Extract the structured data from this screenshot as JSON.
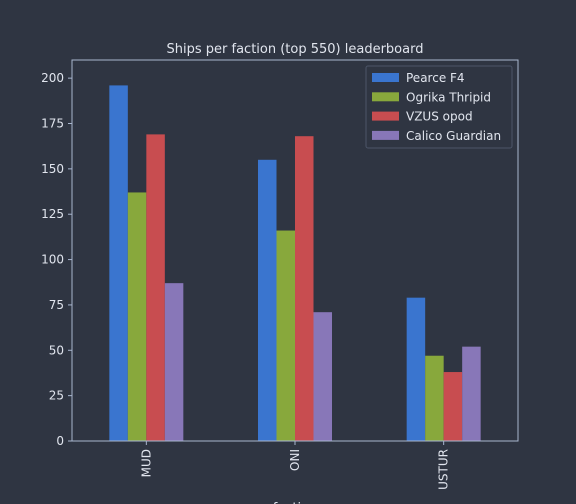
{
  "chart_data": {
    "type": "bar",
    "title": "Ships per faction (top 550) leaderboard",
    "xlabel": "faction",
    "ylabel": "",
    "categories": [
      "MUD",
      "ONI",
      "USTUR"
    ],
    "series": [
      {
        "name": "Pearce F4",
        "color": "#3a75cf",
        "values": [
          196,
          155,
          79
        ]
      },
      {
        "name": "Ogrika Thripid",
        "color": "#88a83c",
        "values": [
          137,
          116,
          47
        ]
      },
      {
        "name": "VZUS opod",
        "color": "#c84d50",
        "values": [
          169,
          168,
          38
        ]
      },
      {
        "name": "Calico Guardian",
        "color": "#8877b8",
        "values": [
          87,
          71,
          52
        ]
      }
    ],
    "ylim": [
      0,
      210
    ],
    "yticks": [
      0,
      25,
      50,
      75,
      100,
      125,
      150,
      175,
      200
    ],
    "grid": false,
    "legend": "top-right",
    "colors": {
      "background": "#2f3542",
      "axes": "#a9b6cf",
      "text": "#e1e5ee"
    }
  }
}
